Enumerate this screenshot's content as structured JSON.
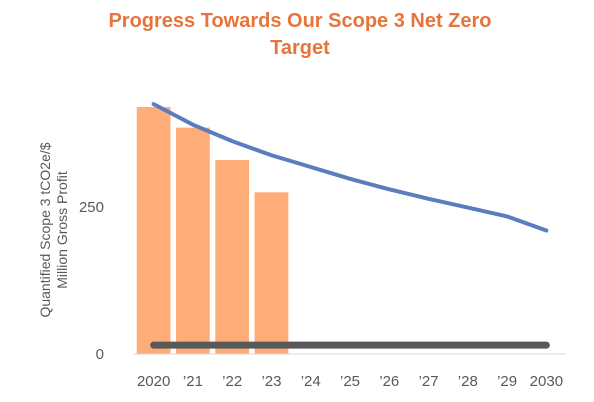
{
  "chart_data": {
    "type": "bar",
    "title_lines": [
      "Progress Towards Our Scope 3 Net Zero",
      "Target"
    ],
    "ylabel_lines": [
      "Quantified Scope 3 tCO2e/$",
      "Million Gross Profit"
    ],
    "xlabel": "",
    "categories": [
      "2020",
      "’21",
      "’22",
      "’23",
      "’24",
      "’25",
      "’26",
      "’27",
      "’28",
      "’29",
      "2030"
    ],
    "ylim": [
      0,
      500
    ],
    "yticks": [
      0,
      250
    ],
    "grid": false,
    "legend": "none",
    "series": [
      {
        "kind": "bar",
        "color": "#FFAD78",
        "values": [
          420,
          385,
          330,
          275,
          null,
          null,
          null,
          null,
          null,
          null,
          null
        ]
      },
      {
        "kind": "line",
        "color": "#5B7DBE",
        "values": [
          425,
          390,
          362,
          338,
          318,
          298,
          280,
          264,
          249,
          234,
          210
        ]
      },
      {
        "kind": "line",
        "color": "#595959",
        "values": [
          15,
          15,
          15,
          15,
          15,
          15,
          15,
          15,
          15,
          15,
          15
        ]
      }
    ]
  }
}
